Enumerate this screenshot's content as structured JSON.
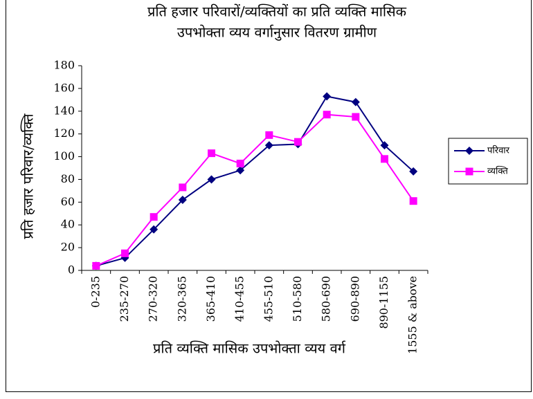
{
  "chart_data": {
    "type": "line",
    "title": [
      "प्रति हजार परिवारों/व्यक्तियों का प्रति व्यक्ति मासिक",
      "उपभोक्ता व्यय वर्गानुसार वितरण     ग्रामीण"
    ],
    "x_label": "प्रति व्यक्ति मासिक उपभोक्ता व्यय वर्ग",
    "y_label": "प्रति हजार परिवार/व्यक्ति",
    "categories": [
      "0-235",
      "235-270",
      "270-320",
      "320-365",
      "365-410",
      "410-455",
      "455-510",
      "510-580",
      "580-690",
      "690-890",
      "890-1155",
      "1555 & above"
    ],
    "series": [
      {
        "name": "परिवार",
        "color": "#000080",
        "marker": "diamond",
        "values": [
          4,
          11,
          36,
          62,
          80,
          88,
          110,
          111,
          153,
          148,
          110,
          87
        ]
      },
      {
        "name": "व्यक्ति",
        "color": "#ff00ff",
        "marker": "square",
        "values": [
          4,
          15,
          47,
          73,
          103,
          94,
          119,
          113,
          137,
          135,
          98,
          61
        ]
      }
    ],
    "ylim": [
      0,
      180
    ],
    "yticks": [
      0,
      20,
      40,
      60,
      80,
      100,
      120,
      140,
      160,
      180
    ],
    "legend": "right"
  }
}
